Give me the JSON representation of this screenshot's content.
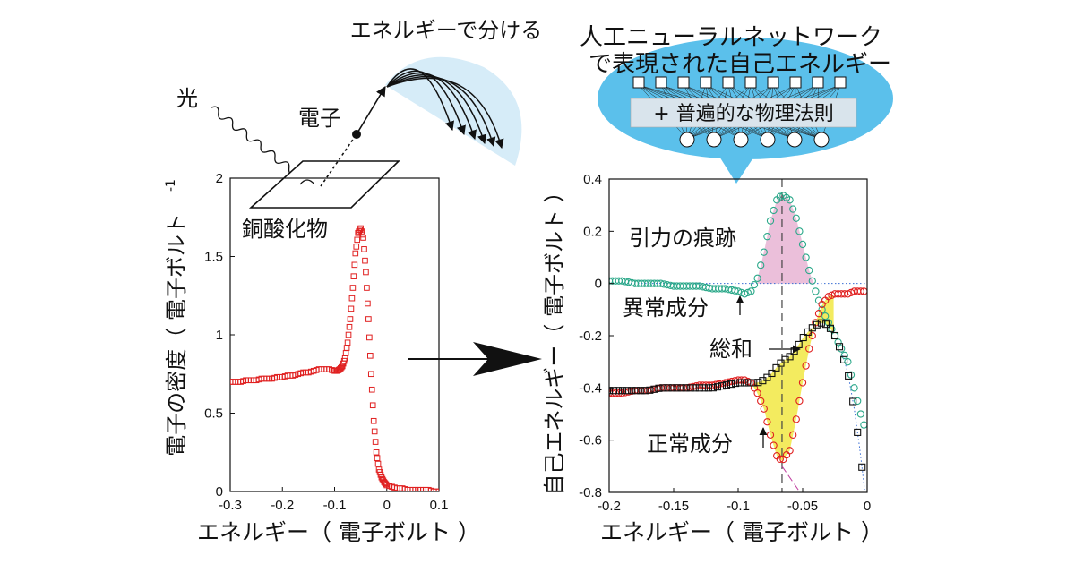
{
  "illustration": {
    "light_label": "光",
    "electron_label": "電子",
    "material_label": "銅酸化物",
    "energy_split_label": "エネルギーで分ける",
    "network_title_line1": "人工ニューラルネットワーク",
    "network_title_line2": "で表現された自己エネルギー",
    "physics_label": "+ 普遍的な物理法則",
    "bubble_color": "#5bc0eb",
    "fan_color": "#d6ecf8"
  },
  "chart_data": [
    {
      "type": "scatter",
      "xlabel": "エネルギー（ 電子ボルト ）",
      "ylabel": "電子の密度（ 電子ボルト",
      "ylabel_exponent": "-1",
      "xlim": [
        -0.3,
        0.1
      ],
      "ylim": [
        0,
        2
      ],
      "xticks": [
        "-0.3",
        "-0.2",
        "-0.1",
        "0",
        "0.1"
      ],
      "yticks": [
        "0",
        "0.5",
        "1",
        "1.5",
        "2"
      ],
      "marker": "square",
      "color": "#e02020",
      "x": [
        -0.3,
        -0.29,
        -0.28,
        -0.27,
        -0.26,
        -0.25,
        -0.24,
        -0.23,
        -0.22,
        -0.21,
        -0.2,
        -0.19,
        -0.18,
        -0.17,
        -0.16,
        -0.15,
        -0.14,
        -0.13,
        -0.12,
        -0.11,
        -0.1,
        -0.095,
        -0.09,
        -0.085,
        -0.08,
        -0.075,
        -0.07,
        -0.065,
        -0.06,
        -0.055,
        -0.05,
        -0.045,
        -0.04,
        -0.035,
        -0.03,
        -0.025,
        -0.02,
        -0.015,
        -0.01,
        -0.005,
        0.0,
        0.01,
        0.02,
        0.03,
        0.04,
        0.05,
        0.06,
        0.07,
        0.08,
        0.09,
        0.1
      ],
      "y": [
        0.7,
        0.7,
        0.7,
        0.71,
        0.71,
        0.71,
        0.72,
        0.72,
        0.72,
        0.73,
        0.73,
        0.74,
        0.74,
        0.75,
        0.76,
        0.76,
        0.77,
        0.78,
        0.78,
        0.78,
        0.77,
        0.77,
        0.78,
        0.8,
        0.85,
        0.95,
        1.1,
        1.3,
        1.52,
        1.65,
        1.68,
        1.62,
        1.4,
        1.1,
        0.75,
        0.45,
        0.25,
        0.14,
        0.09,
        0.06,
        0.04,
        0.03,
        0.02,
        0.02,
        0.01,
        0.01,
        0.01,
        0.01,
        0.01,
        0.0,
        0.0
      ]
    },
    {
      "type": "line",
      "xlabel": "エネルギー（ 電子ボルト ）",
      "ylabel": "自己エネルギー（ 電子ボルト ）",
      "xlim": [
        -0.2,
        0
      ],
      "ylim": [
        -0.8,
        0.4
      ],
      "xticks": [
        "-0.2",
        "-0.15",
        "-0.1",
        "-0.05",
        "0"
      ],
      "yticks": [
        "-0.8",
        "-0.6",
        "-0.4",
        "-0.2",
        "0",
        "0.2",
        "0.4"
      ],
      "peak_x": -0.066,
      "x": [
        -0.2,
        -0.19,
        -0.18,
        -0.17,
        -0.16,
        -0.15,
        -0.14,
        -0.13,
        -0.12,
        -0.11,
        -0.1,
        -0.095,
        -0.09,
        -0.085,
        -0.08,
        -0.075,
        -0.07,
        -0.066,
        -0.06,
        -0.055,
        -0.05,
        -0.045,
        -0.04,
        -0.035,
        -0.03,
        -0.025,
        -0.02,
        -0.015,
        -0.01,
        -0.005,
        -0.002
      ],
      "series": [
        {
          "name": "異常成分",
          "marker": "circle",
          "color": "#2aa889",
          "values": [
            0.01,
            0.01,
            0.0,
            0.0,
            0.0,
            -0.01,
            -0.01,
            -0.01,
            -0.02,
            -0.02,
            -0.03,
            -0.04,
            -0.03,
            0.02,
            0.12,
            0.24,
            0.32,
            0.34,
            0.32,
            0.25,
            0.15,
            0.05,
            -0.03,
            -0.1,
            -0.15,
            -0.2,
            -0.25,
            -0.3,
            -0.4,
            -0.5,
            -0.55
          ]
        },
        {
          "name": "正常成分",
          "marker": "circle",
          "color": "#e02020",
          "values": [
            -0.42,
            -0.42,
            -0.41,
            -0.41,
            -0.4,
            -0.4,
            -0.4,
            -0.39,
            -0.39,
            -0.38,
            -0.37,
            -0.37,
            -0.38,
            -0.42,
            -0.48,
            -0.58,
            -0.66,
            -0.68,
            -0.64,
            -0.52,
            -0.38,
            -0.25,
            -0.15,
            -0.08,
            -0.05,
            -0.04,
            -0.04,
            -0.04,
            -0.03,
            -0.03,
            -0.03
          ]
        },
        {
          "name": "総和",
          "marker": "square",
          "color": "#111111",
          "values": [
            -0.41,
            -0.41,
            -0.41,
            -0.41,
            -0.4,
            -0.4,
            -0.4,
            -0.4,
            -0.4,
            -0.39,
            -0.38,
            -0.38,
            -0.38,
            -0.38,
            -0.37,
            -0.35,
            -0.32,
            -0.3,
            -0.28,
            -0.25,
            -0.21,
            -0.18,
            -0.16,
            -0.15,
            -0.16,
            -0.2,
            -0.26,
            -0.34,
            -0.48,
            -0.66,
            -0.79
          ]
        }
      ],
      "annotations": {
        "attraction": "引力の痕跡",
        "anomalous": "異常成分",
        "normal": "正常成分",
        "sum": "総和"
      },
      "fill_colors": {
        "anomalous": "#e8b4d4",
        "normal": "#f2e94e"
      }
    }
  ]
}
